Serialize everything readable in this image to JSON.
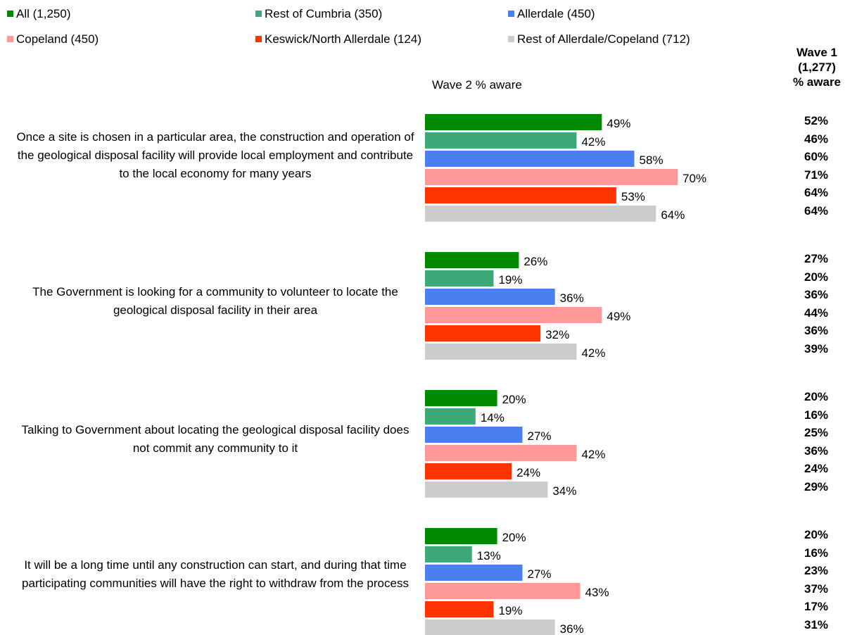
{
  "chart_data": {
    "type": "bar",
    "orientation": "horizontal",
    "title": "",
    "value_header": "Wave 2 % aware",
    "comparison_header": [
      "Wave 1",
      "(1,277)",
      "% aware"
    ],
    "legend_placement": "top",
    "grid": false,
    "xlim": [
      0,
      100
    ],
    "series": [
      {
        "name": "All (1,250)",
        "color": "#008a00"
      },
      {
        "name": "Rest of Cumbria (350)",
        "color": "#3caa78"
      },
      {
        "name": "Allerdale (450)",
        "color": "#4a7ff0"
      },
      {
        "name": "Copeland (450)",
        "color": "#ff9999"
      },
      {
        "name": "Keswick/North Allerdale (124)",
        "color": "#ff3300"
      },
      {
        "name": "Rest of Allerdale/Copeland (712)",
        "color": "#cccccc"
      }
    ],
    "categories": [
      {
        "label": "Once a site is chosen in a particular area, the construction and operation of the geological disposal facility will provide local employment and contribute to the local economy for many years",
        "wave2": [
          49,
          42,
          58,
          70,
          53,
          64
        ],
        "wave2_labels": [
          "49%",
          "42%",
          "58%",
          "70%",
          "53%",
          "64%"
        ],
        "wave1_labels": [
          "52%",
          "46%",
          "60%",
          "71%",
          "64%",
          "64%"
        ]
      },
      {
        "label": "The Government is looking for a community to volunteer to locate the geological disposal facility in their area",
        "wave2": [
          26,
          19,
          36,
          49,
          32,
          42
        ],
        "wave2_labels": [
          "26%",
          "19%",
          "36%",
          "49%",
          "32%",
          "42%"
        ],
        "wave1_labels": [
          "27%",
          "20%",
          "36%",
          "44%",
          "36%",
          "39%"
        ]
      },
      {
        "label": "Talking to Government about locating the geological disposal facility does not commit any community to it",
        "wave2": [
          20,
          14,
          27,
          42,
          24,
          34
        ],
        "wave2_labels": [
          "20%",
          "14%",
          "27%",
          "42%",
          "24%",
          "34%"
        ],
        "wave1_labels": [
          "20%",
          "16%",
          "25%",
          "36%",
          "24%",
          "29%"
        ]
      },
      {
        "label": "It will be a long time until any construction can start, and during that time participating communities will have the right to withdraw from the process",
        "wave2": [
          20,
          13,
          27,
          43,
          19,
          36
        ],
        "wave2_labels": [
          "20%",
          "13%",
          "27%",
          "43%",
          "19%",
          "36%"
        ],
        "wave1_labels": [
          "20%",
          "16%",
          "23%",
          "37%",
          "17%",
          "31%"
        ]
      }
    ]
  }
}
